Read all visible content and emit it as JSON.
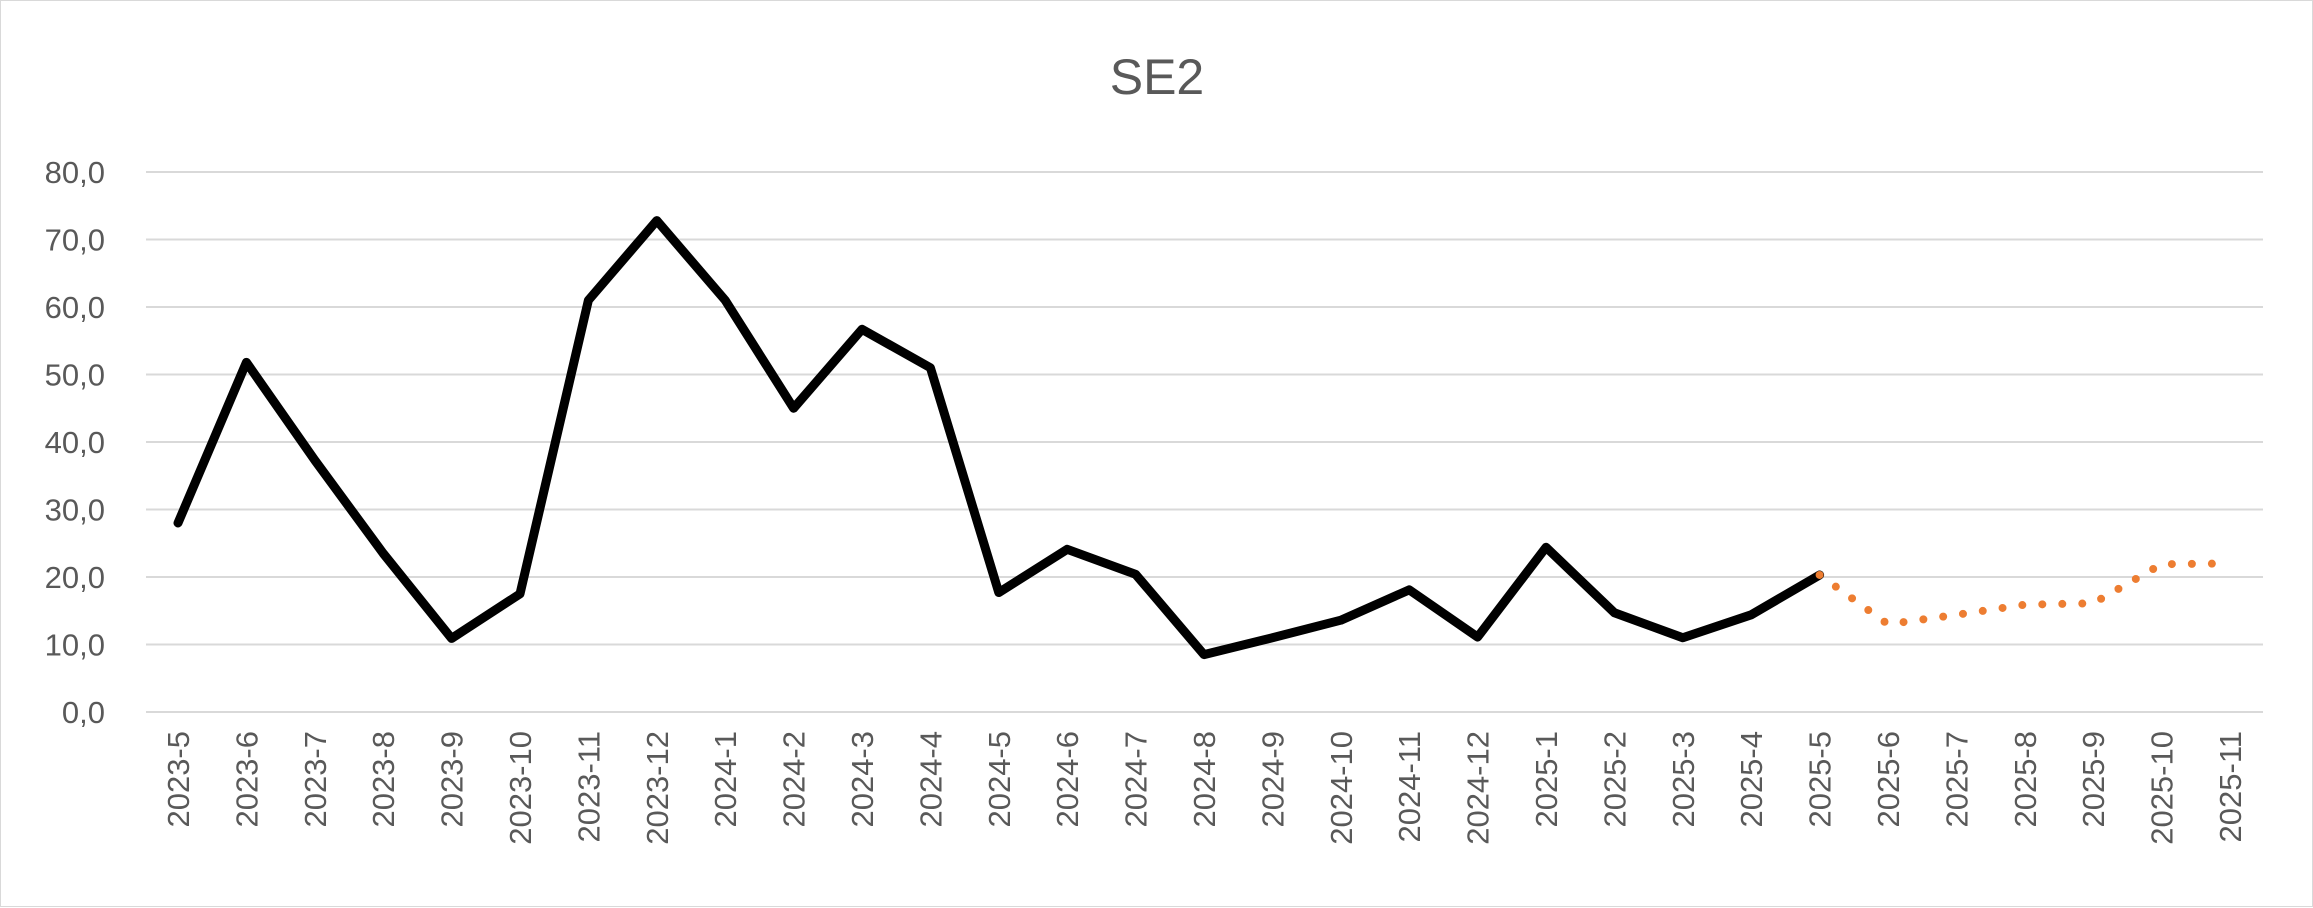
{
  "chart_data": {
    "type": "line",
    "title": "SE2",
    "xlabel": "",
    "ylabel": "",
    "ylim": [
      0,
      80
    ],
    "yticks": [
      "0,0",
      "10,0",
      "20,0",
      "30,0",
      "40,0",
      "50,0",
      "60,0",
      "70,0",
      "80,0"
    ],
    "grid": true,
    "legend": "none",
    "categories": [
      "2023-5",
      "2023-6",
      "2023-7",
      "2023-8",
      "2023-9",
      "2023-10",
      "2023-11",
      "2023-12",
      "2024-1",
      "2024-2",
      "2024-3",
      "2024-4",
      "2024-5",
      "2024-6",
      "2024-7",
      "2024-8",
      "2024-9",
      "2024-10",
      "2024-11",
      "2024-12",
      "2025-1",
      "2025-2",
      "2025-3",
      "2025-4",
      "2025-5",
      "2025-6",
      "2025-7",
      "2025-8",
      "2025-9",
      "2025-10",
      "2025-11"
    ],
    "series": [
      {
        "color": "#000000",
        "style": "solid",
        "values": [
          28.0,
          51.8,
          37.3,
          23.5,
          10.9,
          17.5,
          61.0,
          72.8,
          61.0,
          45.0,
          56.7,
          51.0,
          17.7,
          24.1,
          20.4,
          8.5,
          11.0,
          13.6,
          18.1,
          11.1,
          24.4,
          14.7,
          11.0,
          14.4,
          20.3,
          null,
          null,
          null,
          null,
          null,
          null
        ]
      },
      {
        "color": "#ed7d31",
        "style": "dotted",
        "values": [
          null,
          null,
          null,
          null,
          null,
          null,
          null,
          null,
          null,
          null,
          null,
          null,
          null,
          null,
          null,
          null,
          null,
          null,
          null,
          null,
          null,
          null,
          null,
          null,
          20.3,
          13.0,
          14.4,
          15.9,
          16.1,
          21.9,
          22.0
        ]
      }
    ]
  }
}
